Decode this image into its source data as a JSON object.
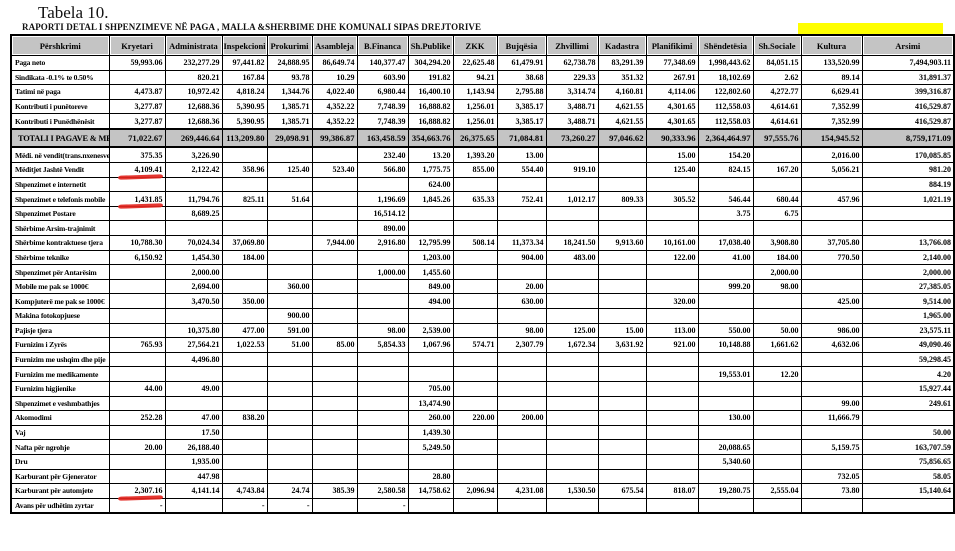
{
  "title": "Tabela 10.",
  "subtitle": "RAPORTI DETAL I SHPENZIMEVE NË PAGA , MALLA &SHERBIME DHE KOMUNALI SIPAS DREJTORIVE",
  "colors": {
    "header_fill": "#c4c4c4",
    "total_row_fill": "#c4c4c4",
    "highlight_yellow": "#ffff00",
    "pen_red": "#e2251e",
    "border": "#000000"
  },
  "table": {
    "columns": [
      "Përshkrimi",
      "Kryetari",
      "Administrata",
      "Inspekcioni",
      "Prokurimi",
      "Asambleja",
      "B.Financa",
      "Sh.Publike",
      "ZKK",
      "Bujqësia",
      "Zhvillimi",
      "Kadastra",
      "Planifikimi",
      "Shëndetësia",
      "Sh.Sociale",
      "Kultura",
      "Arsimi"
    ],
    "rows": [
      {
        "label": "Paga neto",
        "values": [
          "59,993.06",
          "232,277.29",
          "97,441.82",
          "24,888.95",
          "86,649.74",
          "140,377.47",
          "304,294.20",
          "22,625.48",
          "61,479.91",
          "62,738.78",
          "83,291.39",
          "77,348.69",
          "1,998,443.62",
          "84,051.15",
          "133,520.99",
          "7,494,903.11"
        ]
      },
      {
        "label": "Sindikata -0.1% te 0.50%",
        "values": [
          "",
          "820.21",
          "167.84",
          "93.78",
          "10.29",
          "603.90",
          "191.82",
          "94.21",
          "38.68",
          "229.33",
          "351.32",
          "267.91",
          "18,102.69",
          "2.62",
          "89.14",
          "31,891.37"
        ]
      },
      {
        "label": "Tatimi në paga",
        "values": [
          "4,473.87",
          "10,972.42",
          "4,818.24",
          "1,344.76",
          "4,022.40",
          "6,980.44",
          "16,400.10",
          "1,143.94",
          "2,795.88",
          "3,314.74",
          "4,160.81",
          "4,114.06",
          "122,802.60",
          "4,272.77",
          "6,629.41",
          "399,316.87"
        ]
      },
      {
        "label": "Kontributi i punëtoreve",
        "values": [
          "3,277.87",
          "12,688.36",
          "5,390.95",
          "1,385.71",
          "4,352.22",
          "7,748.39",
          "16,888.82",
          "1,256.01",
          "3,385.17",
          "3,488.71",
          "4,621.55",
          "4,301.65",
          "112,558.03",
          "4,614.61",
          "7,352.99",
          "416,529.87"
        ]
      },
      {
        "label": "Kontributi i Punëdhënësit",
        "values": [
          "3,277.87",
          "12,688.36",
          "5,390.95",
          "1,385.71",
          "4,352.22",
          "7,748.39",
          "16,888.82",
          "1,256.01",
          "3,385.17",
          "3,488.71",
          "4,621.55",
          "4,301.65",
          "112,558.03",
          "4,614.61",
          "7,352.99",
          "416,529.87"
        ]
      },
      {
        "label": "TOTALI I PAGAVE & MED.",
        "style": "total",
        "values": [
          "71,022.67",
          "269,446.64",
          "113,209.80",
          "29,098.91",
          "99,386.87",
          "163,458.59",
          "354,663.76",
          "26,375.65",
          "71,084.81",
          "73,260.27",
          "97,046.62",
          "90,333.96",
          "2,364,464.97",
          "97,555.76",
          "154,945.52",
          "8,759,171.09"
        ]
      },
      {
        "label": "Mëdi. në vendit(trans.nxenesve)",
        "values": [
          "375.35",
          "3,226.90",
          "",
          "",
          "",
          "232.40",
          "13.20",
          "1,393.20",
          "13.00",
          "",
          "",
          "15.00",
          "154.20",
          "",
          "2,016.00",
          "170,085.85"
        ]
      },
      {
        "label": "Mëditjet Jashtë Vendit",
        "red_underline_cols": [
          0
        ],
        "values": [
          "4,109.41",
          "2,122.42",
          "358.96",
          "125.40",
          "523.40",
          "566.80",
          "1,775.75",
          "855.00",
          "554.40",
          "919.10",
          "",
          "125.40",
          "824.15",
          "167.20",
          "5,056.21",
          "981.20"
        ]
      },
      {
        "label": "Shpenzimet e internetit",
        "values": [
          "",
          "",
          "",
          "",
          "",
          "",
          "624.00",
          "",
          "",
          "",
          "",
          "",
          "",
          "",
          "",
          "884.19"
        ]
      },
      {
        "label": "Shpenzimet e telefonis mobile",
        "red_underline_cols": [
          0
        ],
        "values": [
          "1,431.85",
          "11,794.76",
          "825.11",
          "51.64",
          "",
          "1,196.69",
          "1,845.26",
          "635.33",
          "752.41",
          "1,012.17",
          "809.33",
          "305.52",
          "546.44",
          "680.44",
          "457.96",
          "1,021.19"
        ]
      },
      {
        "label": "Shpenzimet Postare",
        "values": [
          "",
          "8,689.25",
          "",
          "",
          "",
          "16,514.12",
          "",
          "",
          "",
          "",
          "",
          "",
          "3.75",
          "6.75",
          "",
          ""
        ]
      },
      {
        "label": "Shërbime Arsim-trajnimit",
        "values": [
          "",
          "",
          "",
          "",
          "",
          "890.00",
          "",
          "",
          "",
          "",
          "",
          "",
          "",
          "",
          "",
          ""
        ]
      },
      {
        "label": "Shërbime kontraktuese tjera",
        "values": [
          "10,788.30",
          "70,024.34",
          "37,069.80",
          "",
          "7,944.00",
          "2,916.80",
          "12,795.99",
          "508.14",
          "11,373.34",
          "18,241.50",
          "9,913.60",
          "10,161.00",
          "17,038.40",
          "3,908.80",
          "37,705.80",
          "13,766.08"
        ]
      },
      {
        "label": "Shërbime teknike",
        "values": [
          "6,150.92",
          "1,454.30",
          "184.00",
          "",
          "",
          "",
          "1,203.00",
          "",
          "904.00",
          "483.00",
          "",
          "122.00",
          "41.00",
          "184.00",
          "770.50",
          "2,140.00"
        ]
      },
      {
        "label": "Shpenzimet për Antarësim",
        "values": [
          "",
          "2,000.00",
          "",
          "",
          "",
          "1,000.00",
          "1,455.60",
          "",
          "",
          "",
          "",
          "",
          "",
          "2,000.00",
          "",
          "2,000.00"
        ]
      },
      {
        "label": "Mobile me pak se 1000€",
        "values": [
          "",
          "2,694.00",
          "",
          "360.00",
          "",
          "",
          "849.00",
          "",
          "20.00",
          "",
          "",
          "",
          "999.20",
          "98.00",
          "",
          "27,385.05"
        ]
      },
      {
        "label": "Kompjuterë me pak se 1000€",
        "values": [
          "",
          "3,470.50",
          "350.00",
          "",
          "",
          "",
          "494.00",
          "",
          "630.00",
          "",
          "",
          "320.00",
          "",
          "",
          "425.00",
          "9,514.00"
        ]
      },
      {
        "label": "Makina fotokopjuese",
        "values": [
          "",
          "",
          "",
          "900.00",
          "",
          "",
          "",
          "",
          "",
          "",
          "",
          "",
          "",
          "",
          "",
          "1,965.00"
        ]
      },
      {
        "label": "Pajisje tjera",
        "values": [
          "",
          "10,375.80",
          "477.00",
          "591.00",
          "",
          "98.00",
          "2,539.00",
          "",
          "98.00",
          "125.00",
          "15.00",
          "113.00",
          "550.00",
          "50.00",
          "986.00",
          "23,575.11"
        ]
      },
      {
        "label": "Furnizim i Zyrës",
        "values": [
          "765.93",
          "27,564.21",
          "1,022.53",
          "51.00",
          "85.00",
          "5,854.33",
          "1,067.96",
          "574.71",
          "2,307.79",
          "1,672.34",
          "3,631.92",
          "921.00",
          "10,148.88",
          "1,661.62",
          "4,632.06",
          "49,090.46"
        ]
      },
      {
        "label": "Furnizim me ushqim dhe pije",
        "values": [
          "",
          "4,496.80",
          "",
          "",
          "",
          "",
          "",
          "",
          "",
          "",
          "",
          "",
          "",
          "",
          "",
          "59,298.45"
        ]
      },
      {
        "label": "Furnizim me medikamente",
        "values": [
          "",
          "",
          "",
          "",
          "",
          "",
          "",
          "",
          "",
          "",
          "",
          "",
          "19,553.01",
          "12.20",
          "",
          "4.20"
        ]
      },
      {
        "label": "Furnizim higjienike",
        "values": [
          "44.00",
          "49.00",
          "",
          "",
          "",
          "",
          "705.00",
          "",
          "",
          "",
          "",
          "",
          "",
          "",
          "",
          "15,927.44"
        ]
      },
      {
        "label": "Shpenzimet e veshmbathjes",
        "values": [
          "",
          "",
          "",
          "",
          "",
          "",
          "13,474.90",
          "",
          "",
          "",
          "",
          "",
          "",
          "",
          "99.00",
          "249.61"
        ]
      },
      {
        "label": "Akomodimi",
        "values": [
          "252.28",
          "47.00",
          "838.20",
          "",
          "",
          "",
          "260.00",
          "220.00",
          "200.00",
          "",
          "",
          "",
          "130.00",
          "",
          "11,666.79",
          ""
        ]
      },
      {
        "label": "Vaj",
        "values": [
          "",
          "17.50",
          "",
          "",
          "",
          "",
          "1,439.30",
          "",
          "",
          "",
          "",
          "",
          "",
          "",
          "",
          "50.00"
        ]
      },
      {
        "label": "Nafta për ngrohje",
        "values": [
          "20.00",
          "26,188.40",
          "",
          "",
          "",
          "",
          "5,249.50",
          "",
          "",
          "",
          "",
          "",
          "20,088.65",
          "",
          "5,159.75",
          "163,707.59"
        ]
      },
      {
        "label": "Dru",
        "values": [
          "",
          "1,935.00",
          "",
          "",
          "",
          "",
          "",
          "",
          "",
          "",
          "",
          "",
          "5,340.60",
          "",
          "",
          "75,856.65"
        ]
      },
      {
        "label": "Karburant për Gjenerator",
        "values": [
          "",
          "447.98",
          "",
          "",
          "",
          "",
          "28.80",
          "",
          "",
          "",
          "",
          "",
          "",
          "",
          "732.05",
          "58.05"
        ]
      },
      {
        "label": "Karburant për automjete",
        "red_underline_cols": [
          0
        ],
        "values": [
          "2,307.16",
          "4,141.14",
          "4,743.84",
          "24.74",
          "385.39",
          "2,580.58",
          "14,758.62",
          "2,096.94",
          "4,231.08",
          "1,530.50",
          "675.54",
          "818.07",
          "19,280.75",
          "2,555.04",
          "73.80",
          "15,140.64"
        ]
      },
      {
        "label": "Avans për udhëtim zyrtar",
        "values": [
          "-",
          "",
          "-",
          "-",
          "",
          "-",
          "",
          "",
          "",
          "",
          "",
          "",
          "",
          "",
          "",
          ""
        ]
      }
    ]
  }
}
